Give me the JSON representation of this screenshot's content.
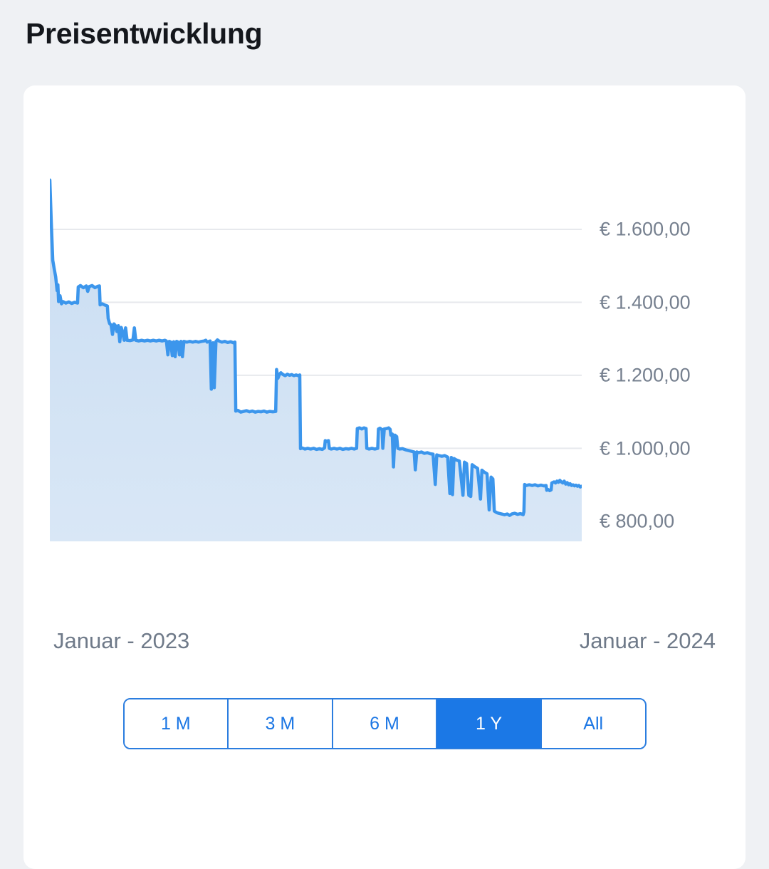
{
  "page": {
    "title": "Preisentwicklung"
  },
  "chart_data": {
    "type": "area",
    "title": "Preisentwicklung",
    "x_start_label": "Januar - 2023",
    "x_end_label": "Januar - 2024",
    "x_range": [
      0,
      365
    ],
    "ylim": [
      745,
      1760
    ],
    "grid": "horizontal",
    "legend": "none",
    "y_ticks": [
      {
        "value": 1600,
        "label": "€ 1.600,00"
      },
      {
        "value": 1400,
        "label": "€ 1.400,00"
      },
      {
        "value": 1200,
        "label": "€ 1.200,00"
      },
      {
        "value": 1000,
        "label": "€ 1.000,00"
      },
      {
        "value": 800,
        "label": "€ 800,00"
      }
    ],
    "colors": {
      "line": "#3c96ec",
      "fill_top": "#c9ddf2",
      "fill_bottom": "#d9e7f6",
      "grid": "#e7e9ed"
    },
    "series": [
      {
        "name": "Preis",
        "unit": "EUR",
        "points": [
          [
            0,
            1735
          ],
          [
            1,
            1620
          ],
          [
            2,
            1515
          ],
          [
            3,
            1492
          ],
          [
            4,
            1470
          ],
          [
            5,
            1432
          ],
          [
            5.5,
            1448
          ],
          [
            6,
            1402
          ],
          [
            7,
            1418
          ],
          [
            8,
            1396
          ],
          [
            9,
            1402
          ],
          [
            11,
            1398
          ],
          [
            13,
            1401
          ],
          [
            15,
            1397
          ],
          [
            17,
            1400
          ],
          [
            19,
            1398
          ],
          [
            19.5,
            1442
          ],
          [
            21,
            1446
          ],
          [
            23,
            1440
          ],
          [
            25,
            1445
          ],
          [
            26,
            1430
          ],
          [
            27,
            1443
          ],
          [
            29,
            1446
          ],
          [
            31,
            1440
          ],
          [
            33,
            1444
          ],
          [
            34,
            1445
          ],
          [
            34.5,
            1393
          ],
          [
            36,
            1396
          ],
          [
            38,
            1392
          ],
          [
            39.5,
            1390
          ],
          [
            40,
            1356
          ],
          [
            41,
            1342
          ],
          [
            42,
            1338
          ],
          [
            43,
            1312
          ],
          [
            44,
            1341
          ],
          [
            45,
            1336
          ],
          [
            46,
            1320
          ],
          [
            47,
            1336
          ],
          [
            48,
            1292
          ],
          [
            49,
            1331
          ],
          [
            50,
            1318
          ],
          [
            51,
            1296
          ],
          [
            52,
            1330
          ],
          [
            53,
            1296
          ],
          [
            55,
            1295
          ],
          [
            57,
            1297
          ],
          [
            58,
            1330
          ],
          [
            59,
            1296
          ],
          [
            61,
            1294
          ],
          [
            63,
            1296
          ],
          [
            65,
            1294
          ],
          [
            67,
            1296
          ],
          [
            69,
            1294
          ],
          [
            71,
            1296
          ],
          [
            73,
            1294
          ],
          [
            75,
            1296
          ],
          [
            77,
            1294
          ],
          [
            79,
            1296
          ],
          [
            80,
            1294
          ],
          [
            81,
            1256
          ],
          [
            82,
            1293
          ],
          [
            83,
            1291
          ],
          [
            84,
            1254
          ],
          [
            85,
            1292
          ],
          [
            86,
            1251
          ],
          [
            87,
            1293
          ],
          [
            88,
            1291
          ],
          [
            89,
            1256
          ],
          [
            90,
            1293
          ],
          [
            91,
            1251
          ],
          [
            92,
            1293
          ],
          [
            94,
            1291
          ],
          [
            96,
            1293
          ],
          [
            98,
            1291
          ],
          [
            100,
            1293
          ],
          [
            102,
            1291
          ],
          [
            104,
            1293
          ],
          [
            106,
            1294
          ],
          [
            107,
            1296
          ],
          [
            108,
            1291
          ],
          [
            110,
            1294
          ],
          [
            110.8,
            1162
          ],
          [
            112,
            1289
          ],
          [
            112.8,
            1166
          ],
          [
            114,
            1293
          ],
          [
            115,
            1297
          ],
          [
            116,
            1294
          ],
          [
            118,
            1291
          ],
          [
            120,
            1293
          ],
          [
            122,
            1290
          ],
          [
            124,
            1292
          ],
          [
            126,
            1289
          ],
          [
            127,
            1291
          ],
          [
            127.6,
            1102
          ],
          [
            129,
            1104
          ],
          [
            131,
            1099
          ],
          [
            133,
            1101
          ],
          [
            135,
            1103
          ],
          [
            137,
            1100
          ],
          [
            139,
            1102
          ],
          [
            141,
            1099
          ],
          [
            143,
            1101
          ],
          [
            145,
            1100
          ],
          [
            147,
            1102
          ],
          [
            149,
            1099
          ],
          [
            151,
            1101
          ],
          [
            153,
            1100
          ],
          [
            155,
            1101
          ],
          [
            155.6,
            1216
          ],
          [
            156.5,
            1192
          ],
          [
            157.5,
            1202
          ],
          [
            158.5,
            1207
          ],
          [
            160,
            1202
          ],
          [
            161.5,
            1199
          ],
          [
            163,
            1203
          ],
          [
            164.5,
            1200
          ],
          [
            166,
            1202
          ],
          [
            167.5,
            1199
          ],
          [
            169,
            1201
          ],
          [
            170.5,
            1199
          ],
          [
            171.5,
            1201
          ],
          [
            172,
            999
          ],
          [
            173,
            1001
          ],
          [
            175,
            998
          ],
          [
            177,
            1000
          ],
          [
            179,
            998
          ],
          [
            181,
            1000
          ],
          [
            183,
            997
          ],
          [
            185,
            999
          ],
          [
            187,
            997
          ],
          [
            188.5,
            1001
          ],
          [
            189,
            1021
          ],
          [
            190,
            1019
          ],
          [
            191.2,
            1021
          ],
          [
            191.8,
            1000
          ],
          [
            193,
            998
          ],
          [
            195,
            1000
          ],
          [
            197,
            998
          ],
          [
            199,
            1000
          ],
          [
            201,
            997
          ],
          [
            203,
            999
          ],
          [
            205,
            998
          ],
          [
            207,
            1000
          ],
          [
            209,
            998
          ],
          [
            210.5,
            1000
          ],
          [
            211,
            1054
          ],
          [
            212.5,
            1056
          ],
          [
            214,
            1053
          ],
          [
            215.5,
            1056
          ],
          [
            217,
            1054
          ],
          [
            217.5,
            1000
          ],
          [
            219,
            998
          ],
          [
            221,
            1000
          ],
          [
            223,
            998
          ],
          [
            225,
            1000
          ],
          [
            225.5,
            1053
          ],
          [
            226.5,
            1055
          ],
          [
            228,
            1051
          ],
          [
            228.5,
            1000
          ],
          [
            229.5,
            1053
          ],
          [
            231,
            1054
          ],
          [
            232.5,
            1056
          ],
          [
            233.5,
            1052
          ],
          [
            234,
            1036
          ],
          [
            235,
            1039
          ],
          [
            235.8,
            949
          ],
          [
            236.8,
            1036
          ],
          [
            238,
            1032
          ],
          [
            238.8,
            1000
          ],
          [
            240,
            998
          ],
          [
            242,
            999
          ],
          [
            244,
            996
          ],
          [
            246,
            994
          ],
          [
            248,
            992
          ],
          [
            250,
            990
          ],
          [
            250.8,
            941
          ],
          [
            251.8,
            990
          ],
          [
            253,
            988
          ],
          [
            255,
            990
          ],
          [
            257,
            986
          ],
          [
            259,
            988
          ],
          [
            261,
            985
          ],
          [
            263,
            984
          ],
          [
            264.5,
            901
          ],
          [
            265.5,
            982
          ],
          [
            267,
            980
          ],
          [
            269,
            978
          ],
          [
            271,
            980
          ],
          [
            273,
            976
          ],
          [
            274.5,
            876
          ],
          [
            275.5,
            975
          ],
          [
            276.3,
            873
          ],
          [
            277.3,
            972
          ],
          [
            279,
            968
          ],
          [
            281,
            965
          ],
          [
            283.5,
            871
          ],
          [
            284.5,
            962
          ],
          [
            286,
            958
          ],
          [
            287.5,
            871
          ],
          [
            288.8,
            868
          ],
          [
            289.8,
            955
          ],
          [
            291.5,
            950
          ],
          [
            293.5,
            945
          ],
          [
            295.5,
            861
          ],
          [
            296.5,
            940
          ],
          [
            298,
            935
          ],
          [
            300,
            930
          ],
          [
            301.5,
            831
          ],
          [
            302.8,
            921
          ],
          [
            304,
            916
          ],
          [
            305,
            828
          ],
          [
            306.5,
            824
          ],
          [
            308,
            822
          ],
          [
            310,
            820
          ],
          [
            312,
            818
          ],
          [
            314,
            820
          ],
          [
            315.5,
            816
          ],
          [
            317,
            820
          ],
          [
            319,
            822
          ],
          [
            321,
            819
          ],
          [
            323,
            821
          ],
          [
            324.8,
            818
          ],
          [
            325.3,
            826
          ],
          [
            325.8,
            901
          ],
          [
            327,
            898
          ],
          [
            329,
            900
          ],
          [
            331,
            898
          ],
          [
            333,
            900
          ],
          [
            335,
            897
          ],
          [
            337,
            899
          ],
          [
            339,
            897
          ],
          [
            340.5,
            898
          ],
          [
            341,
            885
          ],
          [
            342,
            887
          ],
          [
            343,
            884
          ],
          [
            344,
            886
          ],
          [
            344.5,
            905
          ],
          [
            346,
            908
          ],
          [
            347,
            905
          ],
          [
            348,
            910
          ],
          [
            349,
            907
          ],
          [
            350,
            912
          ],
          [
            351,
            908
          ],
          [
            352,
            905
          ],
          [
            353,
            910
          ],
          [
            354,
            902
          ],
          [
            355,
            906
          ],
          [
            356,
            900
          ],
          [
            357,
            903
          ],
          [
            358,
            898
          ],
          [
            359,
            900
          ],
          [
            360,
            897
          ],
          [
            361,
            899
          ],
          [
            362,
            896
          ],
          [
            363,
            898
          ],
          [
            364,
            894
          ],
          [
            365,
            896
          ]
        ]
      }
    ]
  },
  "range_buttons": {
    "options": [
      {
        "label": "1 M",
        "active": false
      },
      {
        "label": "3 M",
        "active": false
      },
      {
        "label": "6 M",
        "active": false
      },
      {
        "label": "1 Y",
        "active": true
      },
      {
        "label": "All",
        "active": false
      }
    ]
  }
}
